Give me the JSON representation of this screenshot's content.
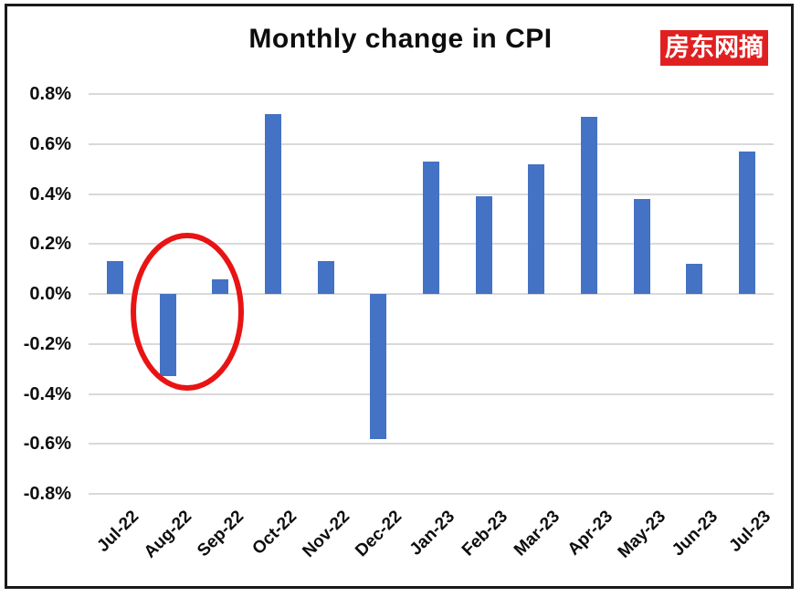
{
  "badge": {
    "label": "房东网摘",
    "bg_color": "#e02020",
    "text_color": "#ffffff"
  },
  "chart_data": {
    "type": "bar",
    "title": "Monthly change in CPI",
    "categories": [
      "Jul-22",
      "Aug-22",
      "Sep-22",
      "Oct-22",
      "Nov-22",
      "Dec-22",
      "Jan-23",
      "Feb-23",
      "Mar-23",
      "Apr-23",
      "May-23",
      "Jun-23",
      "Jul-23"
    ],
    "values": [
      0.13,
      -0.33,
      0.06,
      0.72,
      0.13,
      -0.58,
      0.53,
      0.39,
      0.52,
      0.71,
      0.38,
      0.12,
      0.57
    ],
    "value_unit": "percent",
    "xlabel": "",
    "ylabel": "",
    "ylim": [
      -0.8,
      0.8
    ],
    "yticks": [
      0.8,
      0.6,
      0.4,
      0.2,
      0.0,
      -0.2,
      -0.4,
      -0.6,
      -0.8
    ],
    "ytick_labels": [
      "0.8%",
      "0.6%",
      "0.4%",
      "0.2%",
      "0.0%",
      "-0.2%",
      "-0.4%",
      "-0.6%",
      "-0.8%"
    ],
    "grid": "horizontal",
    "legend": "none",
    "colors": {
      "bar": "#4472c4",
      "gridline": "#d9d9d9",
      "title": "#0d0d0d",
      "frame": "#1a1a1a",
      "annotation": "#e81414"
    },
    "annotation": {
      "shape": "ellipse",
      "color": "#e81414",
      "encircles": [
        "Aug-22",
        "Sep-22"
      ]
    }
  }
}
